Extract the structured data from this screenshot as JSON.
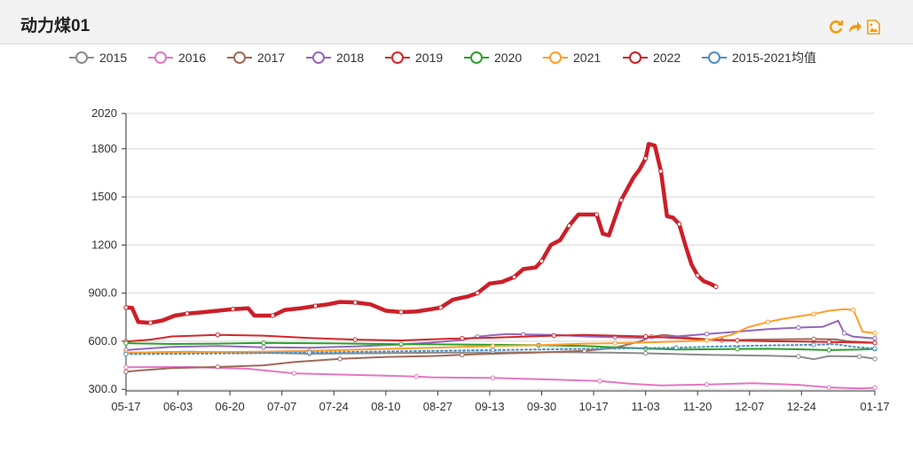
{
  "page": {
    "title": "动力煤01"
  },
  "toolbar": {
    "icons": [
      "refresh-icon",
      "share-icon",
      "save-image-icon"
    ],
    "accent": "#f39c12"
  },
  "chart_data": {
    "type": "line",
    "title": "动力煤01",
    "xlabel": "",
    "ylabel": "",
    "ylim": [
      290,
      2020
    ],
    "yticks": [
      {
        "value": 300,
        "label": "300.0"
      },
      {
        "value": 600,
        "label": "600.0"
      },
      {
        "value": 900,
        "label": "900.0"
      },
      {
        "value": 1200,
        "label": "1200"
      },
      {
        "value": 1500,
        "label": "1500"
      },
      {
        "value": 1800,
        "label": "1800"
      },
      {
        "value": 2020,
        "label": "2020"
      }
    ],
    "xlim": [
      0,
      245
    ],
    "xticks": [
      {
        "day": 0,
        "label": "05-17"
      },
      {
        "day": 17,
        "label": "06-03"
      },
      {
        "day": 34,
        "label": "06-20"
      },
      {
        "day": 51,
        "label": "07-07"
      },
      {
        "day": 68,
        "label": "07-24"
      },
      {
        "day": 85,
        "label": "08-10"
      },
      {
        "day": 102,
        "label": "08-27"
      },
      {
        "day": 119,
        "label": "09-13"
      },
      {
        "day": 136,
        "label": "09-30"
      },
      {
        "day": 153,
        "label": "10-17"
      },
      {
        "day": 170,
        "label": "11-03"
      },
      {
        "day": 187,
        "label": "11-20"
      },
      {
        "day": 204,
        "label": "12-07"
      },
      {
        "day": 221,
        "label": "12-24"
      },
      {
        "day": 245,
        "label": "01-17"
      }
    ],
    "legend_position": "top",
    "series": [
      {
        "name": "2015",
        "color": "#8c8c8c",
        "points": [
          [
            0,
            528
          ],
          [
            20,
            535
          ],
          [
            40,
            530
          ],
          [
            60,
            522
          ],
          [
            80,
            525
          ],
          [
            100,
            528
          ],
          [
            120,
            530
          ],
          [
            140,
            532
          ],
          [
            160,
            528
          ],
          [
            170,
            525
          ],
          [
            190,
            515
          ],
          [
            210,
            510
          ],
          [
            220,
            505
          ],
          [
            225,
            488
          ],
          [
            230,
            508
          ],
          [
            240,
            505
          ],
          [
            245,
            490
          ]
        ]
      },
      {
        "name": "2016",
        "color": "#e377c2",
        "points": [
          [
            0,
            438
          ],
          [
            20,
            440
          ],
          [
            40,
            428
          ],
          [
            55,
            400
          ],
          [
            70,
            392
          ],
          [
            85,
            385
          ],
          [
            95,
            380
          ],
          [
            100,
            375
          ],
          [
            110,
            373
          ],
          [
            120,
            372
          ],
          [
            130,
            366
          ],
          [
            145,
            358
          ],
          [
            155,
            352
          ],
          [
            165,
            335
          ],
          [
            175,
            325
          ],
          [
            190,
            330
          ],
          [
            205,
            338
          ],
          [
            220,
            328
          ],
          [
            230,
            312
          ],
          [
            240,
            306
          ],
          [
            245,
            310
          ]
        ]
      },
      {
        "name": "2017",
        "color": "#a0695a",
        "points": [
          [
            0,
            410
          ],
          [
            5,
            418
          ],
          [
            15,
            432
          ],
          [
            30,
            440
          ],
          [
            45,
            450
          ],
          [
            55,
            470
          ],
          [
            70,
            490
          ],
          [
            85,
            502
          ],
          [
            100,
            508
          ],
          [
            110,
            515
          ],
          [
            120,
            522
          ],
          [
            135,
            530
          ],
          [
            150,
            540
          ],
          [
            160,
            560
          ],
          [
            168,
            598
          ],
          [
            172,
            628
          ],
          [
            176,
            640
          ],
          [
            185,
            620
          ],
          [
            195,
            605
          ],
          [
            205,
            610
          ],
          [
            215,
            612
          ],
          [
            225,
            614
          ],
          [
            232,
            612
          ],
          [
            236,
            600
          ],
          [
            245,
            590
          ]
        ]
      },
      {
        "name": "2018",
        "color": "#9467bd",
        "points": [
          [
            0,
            545
          ],
          [
            15,
            565
          ],
          [
            30,
            570
          ],
          [
            45,
            562
          ],
          [
            60,
            560
          ],
          [
            75,
            568
          ],
          [
            90,
            580
          ],
          [
            100,
            592
          ],
          [
            110,
            608
          ],
          [
            115,
            628
          ],
          [
            120,
            638
          ],
          [
            125,
            645
          ],
          [
            130,
            642
          ],
          [
            140,
            640
          ],
          [
            150,
            630
          ],
          [
            160,
            625
          ],
          [
            170,
            620
          ],
          [
            180,
            630
          ],
          [
            190,
            645
          ],
          [
            200,
            660
          ],
          [
            210,
            675
          ],
          [
            220,
            685
          ],
          [
            228,
            690
          ],
          [
            233,
            728
          ],
          [
            235,
            650
          ],
          [
            238,
            628
          ],
          [
            245,
            618
          ]
        ]
      },
      {
        "name": "2019",
        "color": "#d62728",
        "points": [
          [
            0,
            598
          ],
          [
            8,
            610
          ],
          [
            15,
            630
          ],
          [
            30,
            640
          ],
          [
            45,
            635
          ],
          [
            60,
            620
          ],
          [
            75,
            610
          ],
          [
            90,
            605
          ],
          [
            100,
            612
          ],
          [
            110,
            618
          ],
          [
            120,
            622
          ],
          [
            130,
            628
          ],
          [
            140,
            635
          ],
          [
            150,
            640
          ],
          [
            160,
            635
          ],
          [
            170,
            630
          ],
          [
            180,
            620
          ],
          [
            190,
            610
          ],
          [
            200,
            605
          ],
          [
            210,
            600
          ],
          [
            220,
            598
          ],
          [
            230,
            595
          ],
          [
            240,
            592
          ],
          [
            245,
            590
          ]
        ]
      },
      {
        "name": "2020",
        "color": "#2ca02c",
        "points": [
          [
            0,
            588
          ],
          [
            15,
            583
          ],
          [
            30,
            585
          ],
          [
            45,
            590
          ],
          [
            60,
            588
          ],
          [
            75,
            585
          ],
          [
            90,
            582
          ],
          [
            105,
            580
          ],
          [
            120,
            578
          ],
          [
            135,
            575
          ],
          [
            150,
            570
          ],
          [
            160,
            562
          ],
          [
            170,
            555
          ],
          [
            180,
            548
          ],
          [
            190,
            550
          ],
          [
            200,
            552
          ],
          [
            210,
            553
          ],
          [
            220,
            550
          ],
          [
            230,
            545
          ],
          [
            240,
            548
          ],
          [
            245,
            552
          ]
        ]
      },
      {
        "name": "2021",
        "color": "#ff9e2c",
        "points": [
          [
            0,
            530
          ],
          [
            20,
            532
          ],
          [
            40,
            534
          ],
          [
            60,
            540
          ],
          [
            80,
            550
          ],
          [
            100,
            560
          ],
          [
            120,
            570
          ],
          [
            135,
            575
          ],
          [
            150,
            585
          ],
          [
            160,
            588
          ],
          [
            170,
            592
          ],
          [
            180,
            598
          ],
          [
            190,
            605
          ],
          [
            198,
            640
          ],
          [
            204,
            690
          ],
          [
            210,
            720
          ],
          [
            215,
            740
          ],
          [
            220,
            755
          ],
          [
            225,
            770
          ],
          [
            230,
            790
          ],
          [
            235,
            800
          ],
          [
            238,
            795
          ],
          [
            241,
            660
          ],
          [
            245,
            650
          ]
        ]
      },
      {
        "name": "2022",
        "color": "#cc1f28",
        "bold": true,
        "points": [
          [
            0,
            810
          ],
          [
            2,
            808
          ],
          [
            4,
            720
          ],
          [
            8,
            715
          ],
          [
            12,
            730
          ],
          [
            16,
            760
          ],
          [
            20,
            772
          ],
          [
            25,
            780
          ],
          [
            30,
            790
          ],
          [
            35,
            800
          ],
          [
            40,
            805
          ],
          [
            42,
            760
          ],
          [
            48,
            760
          ],
          [
            52,
            795
          ],
          [
            57,
            805
          ],
          [
            62,
            820
          ],
          [
            66,
            830
          ],
          [
            70,
            845
          ],
          [
            75,
            842
          ],
          [
            80,
            830
          ],
          [
            85,
            790
          ],
          [
            90,
            782
          ],
          [
            95,
            785
          ],
          [
            100,
            800
          ],
          [
            103,
            810
          ],
          [
            107,
            860
          ],
          [
            112,
            880
          ],
          [
            115,
            900
          ],
          [
            119,
            960
          ],
          [
            123,
            970
          ],
          [
            127,
            1000
          ],
          [
            130,
            1050
          ],
          [
            134,
            1060
          ],
          [
            136,
            1100
          ],
          [
            139,
            1200
          ],
          [
            142,
            1230
          ],
          [
            145,
            1320
          ],
          [
            148,
            1390
          ],
          [
            152,
            1390
          ],
          [
            154,
            1390
          ],
          [
            156,
            1270
          ],
          [
            158,
            1260
          ],
          [
            162,
            1480
          ],
          [
            166,
            1620
          ],
          [
            168,
            1670
          ],
          [
            170,
            1740
          ],
          [
            171,
            1830
          ],
          [
            173,
            1820
          ],
          [
            175,
            1660
          ],
          [
            177,
            1380
          ],
          [
            179,
            1370
          ],
          [
            181,
            1330
          ],
          [
            183,
            1200
          ],
          [
            185,
            1080
          ],
          [
            187,
            1010
          ],
          [
            189,
            975
          ],
          [
            191,
            960
          ],
          [
            193,
            940
          ]
        ]
      },
      {
        "name": "2015-2021均值",
        "color": "#4e8fc2",
        "dotted": true,
        "points": [
          [
            0,
            520
          ],
          [
            20,
            522
          ],
          [
            40,
            525
          ],
          [
            60,
            530
          ],
          [
            80,
            535
          ],
          [
            100,
            540
          ],
          [
            120,
            545
          ],
          [
            140,
            550
          ],
          [
            160,
            555
          ],
          [
            180,
            560
          ],
          [
            200,
            570
          ],
          [
            215,
            575
          ],
          [
            225,
            578
          ],
          [
            232,
            582
          ],
          [
            238,
            565
          ],
          [
            245,
            555
          ]
        ]
      }
    ]
  }
}
